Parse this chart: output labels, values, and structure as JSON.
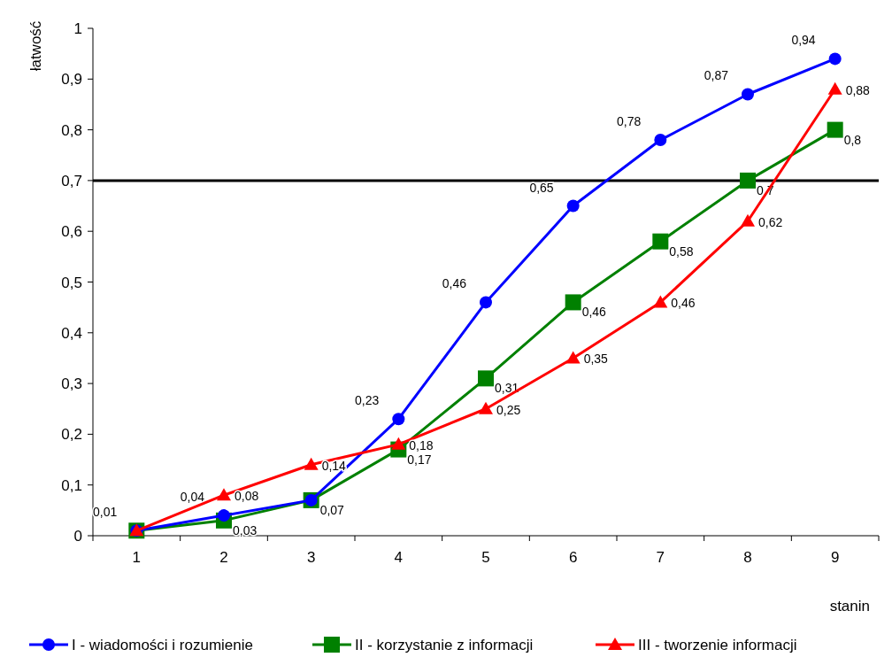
{
  "chart_data": {
    "type": "line",
    "xlabel": "stanin",
    "ylabel": "łatwość",
    "categories": [
      "1",
      "2",
      "3",
      "4",
      "5",
      "6",
      "7",
      "8",
      "9"
    ],
    "series": [
      {
        "name": "I - wiadomości i rozumienie",
        "color": "#0000ff",
        "marker": "circle",
        "values": [
          0.01,
          0.04,
          0.07,
          0.23,
          0.46,
          0.65,
          0.78,
          0.87,
          0.94
        ],
        "value_labels": [
          "0,01",
          "0,04",
          null,
          "0,23",
          "0,46",
          "0,65",
          "0,78",
          "0,87",
          "0,94"
        ]
      },
      {
        "name": "II - korzystanie z informacji",
        "color": "#008000",
        "marker": "square",
        "values": [
          0.01,
          0.03,
          0.07,
          0.17,
          0.31,
          0.46,
          0.58,
          0.7,
          0.8
        ],
        "value_labels": [
          null,
          "0,03",
          "0,07",
          "0,17",
          "0,31",
          "0,46",
          "0,58",
          "0,7",
          "0,8"
        ]
      },
      {
        "name": "III - tworzenie informacji",
        "color": "#ff0000",
        "marker": "triangle",
        "values": [
          0.01,
          0.08,
          0.14,
          0.18,
          0.25,
          0.35,
          0.46,
          0.62,
          0.88
        ],
        "value_labels": [
          null,
          "0,08",
          "0,14",
          "0,18",
          "0,25",
          "0,35",
          "0,46",
          "0,62",
          "0,88"
        ]
      }
    ],
    "ylim": [
      0,
      1
    ],
    "yticks": [
      {
        "value": 0,
        "label": "0"
      },
      {
        "value": 0.1,
        "label": "0,1"
      },
      {
        "value": 0.2,
        "label": "0,2"
      },
      {
        "value": 0.3,
        "label": "0,3"
      },
      {
        "value": 0.4,
        "label": "0,4"
      },
      {
        "value": 0.5,
        "label": "0,5"
      },
      {
        "value": 0.6,
        "label": "0,6"
      },
      {
        "value": 0.7,
        "label": "0,7"
      },
      {
        "value": 0.8,
        "label": "0,8"
      },
      {
        "value": 0.9,
        "label": "0,9"
      },
      {
        "value": 1,
        "label": "1"
      }
    ],
    "ref_lines": [
      {
        "axis": "y",
        "value": 0.7,
        "color": "#000000"
      }
    ],
    "grid": false,
    "legend": "bottom",
    "line_style": "solid"
  }
}
